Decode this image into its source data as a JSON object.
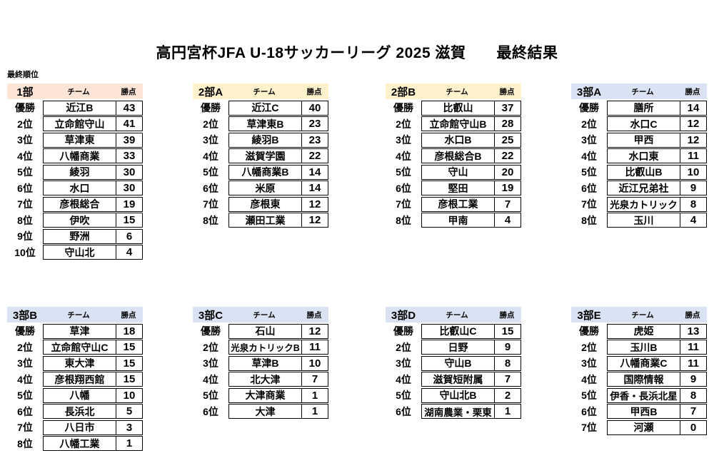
{
  "page": {
    "title": "高円宮杯JFA U-18サッカーリーグ 2025 滋賀　　最終結果",
    "subtitle": "最終順位"
  },
  "columns": {
    "team": "チーム",
    "points": "勝点"
  },
  "header_colors": {
    "division1": "#fce4d6",
    "division2": "#fff2cc",
    "division3": "#dae3f3"
  },
  "tables": [
    {
      "division": "1部",
      "color": "#fce4d6",
      "rows": [
        {
          "rank": "優勝",
          "team": "近江B",
          "points": "43"
        },
        {
          "rank": "2位",
          "team": "立命館守山",
          "points": "41"
        },
        {
          "rank": "3位",
          "team": "草津東",
          "points": "39"
        },
        {
          "rank": "4位",
          "team": "八幡商業",
          "points": "33"
        },
        {
          "rank": "5位",
          "team": "綾羽",
          "points": "30"
        },
        {
          "rank": "6位",
          "team": "水口",
          "points": "30"
        },
        {
          "rank": "7位",
          "team": "彦根総合",
          "points": "19"
        },
        {
          "rank": "8位",
          "team": "伊吹",
          "points": "15"
        },
        {
          "rank": "9位",
          "team": "野洲",
          "points": "6"
        },
        {
          "rank": "10位",
          "team": "守山北",
          "points": "4"
        }
      ]
    },
    {
      "division": "2部A",
      "color": "#fff2cc",
      "rows": [
        {
          "rank": "優勝",
          "team": "近江C",
          "points": "40"
        },
        {
          "rank": "2位",
          "team": "草津東B",
          "points": "23"
        },
        {
          "rank": "3位",
          "team": "綾羽B",
          "points": "23"
        },
        {
          "rank": "4位",
          "team": "滋賀学園",
          "points": "22"
        },
        {
          "rank": "5位",
          "team": "八幡商業B",
          "points": "14"
        },
        {
          "rank": "6位",
          "team": "米原",
          "points": "14"
        },
        {
          "rank": "7位",
          "team": "彦根東",
          "points": "12"
        },
        {
          "rank": "8位",
          "team": "瀬田工業",
          "points": "12"
        }
      ]
    },
    {
      "division": "2部B",
      "color": "#fff2cc",
      "rows": [
        {
          "rank": "優勝",
          "team": "比叡山",
          "points": "37"
        },
        {
          "rank": "2位",
          "team": "立命館守山B",
          "points": "28"
        },
        {
          "rank": "3位",
          "team": "水口B",
          "points": "25"
        },
        {
          "rank": "4位",
          "team": "彦根総合B",
          "points": "22"
        },
        {
          "rank": "5位",
          "team": "守山",
          "points": "20"
        },
        {
          "rank": "6位",
          "team": "堅田",
          "points": "19"
        },
        {
          "rank": "7位",
          "team": "彦根工業",
          "points": "7"
        },
        {
          "rank": "8位",
          "team": "甲南",
          "points": "4"
        }
      ]
    },
    {
      "division": "3部A",
      "color": "#dae3f3",
      "rows": [
        {
          "rank": "優勝",
          "team": "膳所",
          "points": "14"
        },
        {
          "rank": "2位",
          "team": "水口C",
          "points": "12"
        },
        {
          "rank": "3位",
          "team": "甲西",
          "points": "12"
        },
        {
          "rank": "4位",
          "team": "水口東",
          "points": "11"
        },
        {
          "rank": "5位",
          "team": "比叡山B",
          "points": "10"
        },
        {
          "rank": "6位",
          "team": "近江兄弟社",
          "points": "9"
        },
        {
          "rank": "7位",
          "team": "光泉カトリック",
          "points": "8"
        },
        {
          "rank": "8位",
          "team": "玉川",
          "points": "4"
        }
      ]
    },
    {
      "division": "3部B",
      "color": "#dae3f3",
      "rows": [
        {
          "rank": "優勝",
          "team": "草津",
          "points": "18"
        },
        {
          "rank": "2位",
          "team": "立命館守山C",
          "points": "15"
        },
        {
          "rank": "3位",
          "team": "東大津",
          "points": "15"
        },
        {
          "rank": "4位",
          "team": "彦根翔西館",
          "points": "15"
        },
        {
          "rank": "5位",
          "team": "八幡",
          "points": "10"
        },
        {
          "rank": "6位",
          "team": "長浜北",
          "points": "5"
        },
        {
          "rank": "7位",
          "team": "八日市",
          "points": "3"
        },
        {
          "rank": "8位",
          "team": "八幡工業",
          "points": "1"
        }
      ]
    },
    {
      "division": "3部C",
      "color": "#dae3f3",
      "rows": [
        {
          "rank": "優勝",
          "team": "石山",
          "points": "12"
        },
        {
          "rank": "2位",
          "team": "光泉カトリックB",
          "points": "11"
        },
        {
          "rank": "3位",
          "team": "草津B",
          "points": "10"
        },
        {
          "rank": "4位",
          "team": "北大津",
          "points": "7"
        },
        {
          "rank": "5位",
          "team": "大津商業",
          "points": "1"
        },
        {
          "rank": "6位",
          "team": "大津",
          "points": "1"
        }
      ]
    },
    {
      "division": "3部D",
      "color": "#dae3f3",
      "rows": [
        {
          "rank": "優勝",
          "team": "比叡山C",
          "points": "15"
        },
        {
          "rank": "2位",
          "team": "日野",
          "points": "9"
        },
        {
          "rank": "3位",
          "team": "守山B",
          "points": "8"
        },
        {
          "rank": "4位",
          "team": "滋賀短附属",
          "points": "7"
        },
        {
          "rank": "5位",
          "team": "守山北B",
          "points": "2"
        },
        {
          "rank": "6位",
          "team": "湖南農業・栗東",
          "points": "1"
        }
      ]
    },
    {
      "division": "3部E",
      "color": "#dae3f3",
      "rows": [
        {
          "rank": "優勝",
          "team": "虎姫",
          "points": "13"
        },
        {
          "rank": "2位",
          "team": "玉川B",
          "points": "11"
        },
        {
          "rank": "3位",
          "team": "八幡商業C",
          "points": "11"
        },
        {
          "rank": "4位",
          "team": "国際情報",
          "points": "9"
        },
        {
          "rank": "5位",
          "team": "伊香・長浜北星",
          "points": "8"
        },
        {
          "rank": "6位",
          "team": "甲西B",
          "points": "7"
        },
        {
          "rank": "7位",
          "team": "河瀬",
          "points": "0"
        }
      ]
    }
  ]
}
